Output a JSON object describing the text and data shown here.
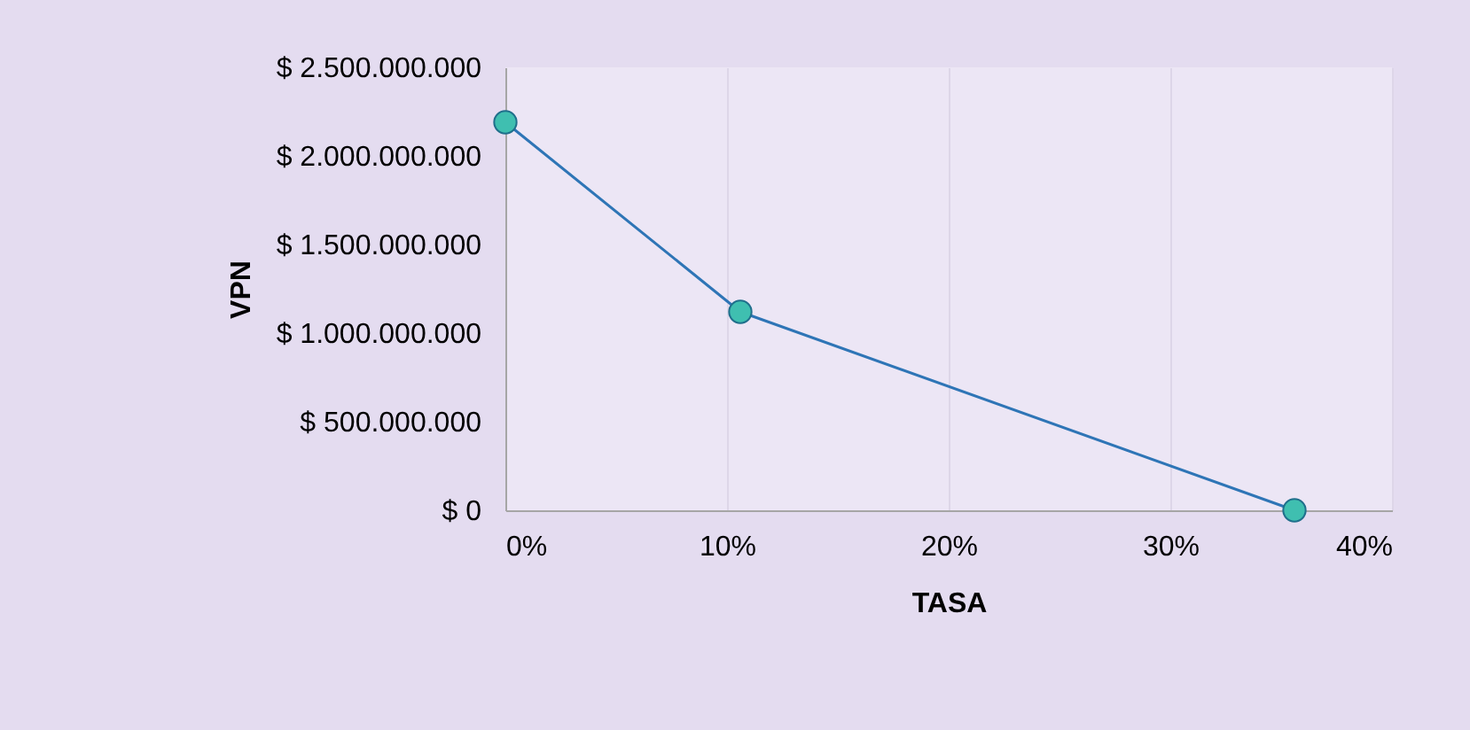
{
  "chart_data": {
    "type": "line",
    "xlabel": "TASA",
    "ylabel": "VPN",
    "x": [
      0,
      10.6,
      35.6
    ],
    "series": [
      {
        "color": "#2e75b6",
        "values": [
          2190000000,
          1120000000,
          0
        ]
      }
    ],
    "xlim": [
      0,
      40
    ],
    "xticks": [
      {
        "value": 0,
        "label": "0%"
      },
      {
        "value": 10,
        "label": "10%"
      },
      {
        "value": 20,
        "label": "20%"
      },
      {
        "value": 30,
        "label": "30%"
      },
      {
        "value": 40,
        "label": "40%"
      }
    ],
    "ylim": [
      0,
      2500000000
    ],
    "yticks": [
      {
        "value": 0,
        "label": "$ 0"
      },
      {
        "value": 500000000,
        "label": "$ 500.000.000"
      },
      {
        "value": 1000000000,
        "label": "$ 1.000.000.000"
      },
      {
        "value": 1500000000,
        "label": "$ 1.500.000.000"
      },
      {
        "value": 2000000000,
        "label": "$ 2.000.000.000"
      },
      {
        "value": 2500000000,
        "label": "$ 2.500.000.000"
      }
    ],
    "grid": "x",
    "marker": "circle",
    "line_style": "solid"
  }
}
